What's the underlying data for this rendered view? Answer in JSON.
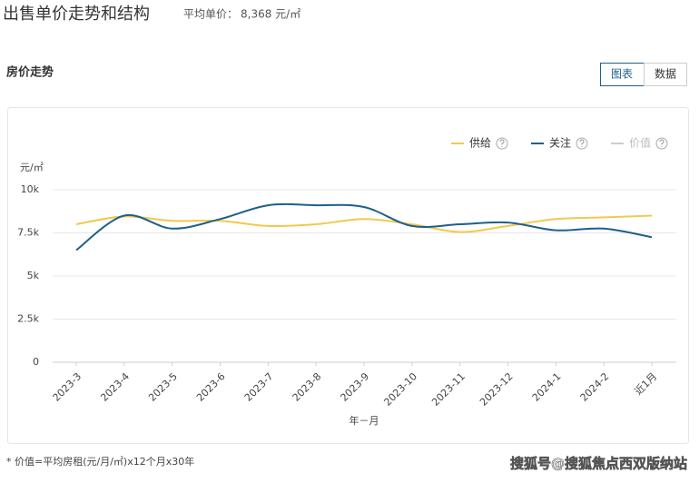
{
  "header": {
    "title": "出售单价走势和结构",
    "avg_price_label": "平均单价：",
    "avg_price": "8,368 元/㎡"
  },
  "section_title": "房价走势",
  "tabs": [
    "图表",
    "数据"
  ],
  "chart_data": {
    "type": "line",
    "y_label": "元/㎡",
    "x_label": "年－月",
    "categories": [
      "2023-3",
      "2023-4",
      "2023-5",
      "2023-6",
      "2023-7",
      "2023-8",
      "2023-9",
      "2023-10",
      "2023-11",
      "2023-12",
      "2024-1",
      "2024-2",
      "近1月"
    ],
    "series": [
      {
        "name": "供给",
        "color": "#f2c94c",
        "values": [
          8000,
          8450,
          8200,
          8200,
          7900,
          8000,
          8300,
          8000,
          7550,
          7900,
          8300,
          8400,
          8500
        ]
      },
      {
        "name": "关注",
        "color": "#1f5f8b",
        "values": [
          6500,
          8500,
          7750,
          8300,
          9100,
          9100,
          9000,
          7900,
          8000,
          8100,
          7650,
          7750,
          7250
        ]
      },
      {
        "name": "价值",
        "color": "#cccccc",
        "values": [
          null,
          null,
          null,
          null,
          null,
          null,
          null,
          null,
          null,
          null,
          null,
          null,
          null
        ]
      }
    ],
    "ylim": [
      0,
      10000
    ],
    "yticks": [
      0,
      {
        "value": 2500,
        "label": "2.5k"
      },
      {
        "value": 5000,
        "label": "5k"
      },
      {
        "value": 7500,
        "label": "7.5k"
      },
      {
        "value": 10000,
        "label": "10k"
      }
    ],
    "grid": true,
    "legend": "top-right"
  },
  "footnote": "* 价值=平均房租(元/月/㎡)x12个月x30年",
  "watermark": "搜狐号@搜狐焦点西双版纳站"
}
